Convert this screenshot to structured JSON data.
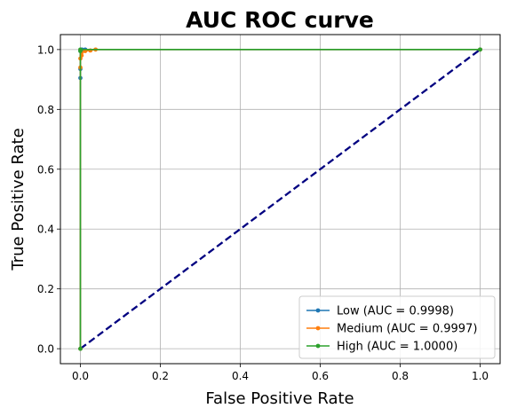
{
  "chart_data": {
    "type": "line",
    "title": "AUC ROC curve",
    "xlabel": "False Positive Rate",
    "ylabel": "True Positive Rate",
    "xlim": [
      -0.05,
      1.05
    ],
    "ylim": [
      -0.05,
      1.05
    ],
    "xticks": [
      "0.0",
      "0.2",
      "0.4",
      "0.6",
      "0.8",
      "1.0"
    ],
    "yticks": [
      "0.0",
      "0.2",
      "0.4",
      "0.6",
      "0.8",
      "1.0"
    ],
    "grid": true,
    "legend_position": "bottom-right",
    "diagonal": {
      "x": [
        0,
        1
      ],
      "y": [
        0,
        1
      ],
      "color": "#000080",
      "style": "dashed"
    },
    "series": [
      {
        "name": "Low (AUC = 0.9998)",
        "color": "#1f77b4",
        "x": [
          0.0,
          0.0,
          0.0,
          0.0,
          0.002,
          0.004,
          0.012,
          1.0
        ],
        "y": [
          0.0,
          0.905,
          0.935,
          0.995,
          0.995,
          1.0,
          1.0,
          1.0
        ]
      },
      {
        "name": "Medium (AUC = 0.9997)",
        "color": "#ff7f0e",
        "x": [
          0.0,
          0.0,
          0.0,
          0.003,
          0.003,
          0.012,
          0.025,
          0.038,
          1.0
        ],
        "y": [
          0.0,
          0.94,
          0.97,
          0.98,
          0.99,
          0.995,
          0.997,
          1.0,
          1.0
        ]
      },
      {
        "name": "High (AUC = 1.0000)",
        "color": "#2ca02c",
        "x": [
          0.0,
          0.0,
          0.0,
          1.0
        ],
        "y": [
          0.0,
          0.995,
          1.0,
          1.0
        ]
      }
    ]
  }
}
